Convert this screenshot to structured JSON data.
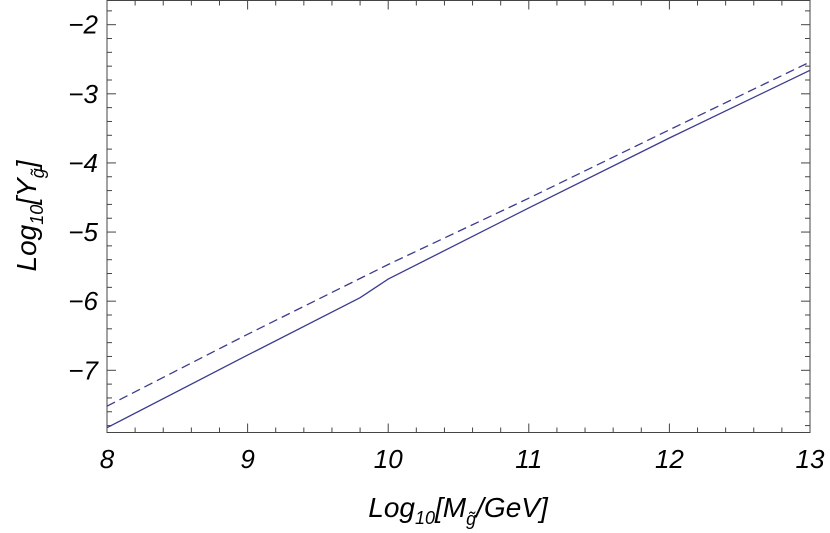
{
  "chart_data": {
    "type": "line",
    "xlabel": {
      "prefix": "Log",
      "sub": "10",
      "open": "[",
      "symbol": "M",
      "symbol_sub": "g̃",
      "rest": "/GeV]"
    },
    "ylabel": {
      "prefix": "Log",
      "sub": "10",
      "open": "[",
      "symbol": "Y",
      "symbol_sub": "g̃",
      "close": "]"
    },
    "xlim": [
      8,
      13
    ],
    "ylim": [
      -7.9,
      -1.65
    ],
    "xticks": [
      8,
      9,
      10,
      11,
      12,
      13
    ],
    "yticks": [
      -7,
      -6,
      -5,
      -4,
      -3,
      -2
    ],
    "ytick_labels": [
      "−7",
      "−6",
      "−5",
      "−4",
      "−3",
      "−2"
    ],
    "grid": false,
    "series": [
      {
        "style": "solid",
        "color": "#3b3b8f",
        "x": [
          8,
          9,
          9.8,
          10,
          11,
          12,
          13
        ],
        "y": [
          -7.83,
          -6.78,
          -5.95,
          -5.68,
          -4.65,
          -3.64,
          -2.66
        ]
      },
      {
        "style": "dashed",
        "color": "#3b3b8f",
        "x": [
          8,
          9,
          10,
          11,
          12,
          13
        ],
        "y": [
          -7.52,
          -6.48,
          -5.47,
          -4.51,
          -3.52,
          -2.54
        ]
      }
    ]
  }
}
